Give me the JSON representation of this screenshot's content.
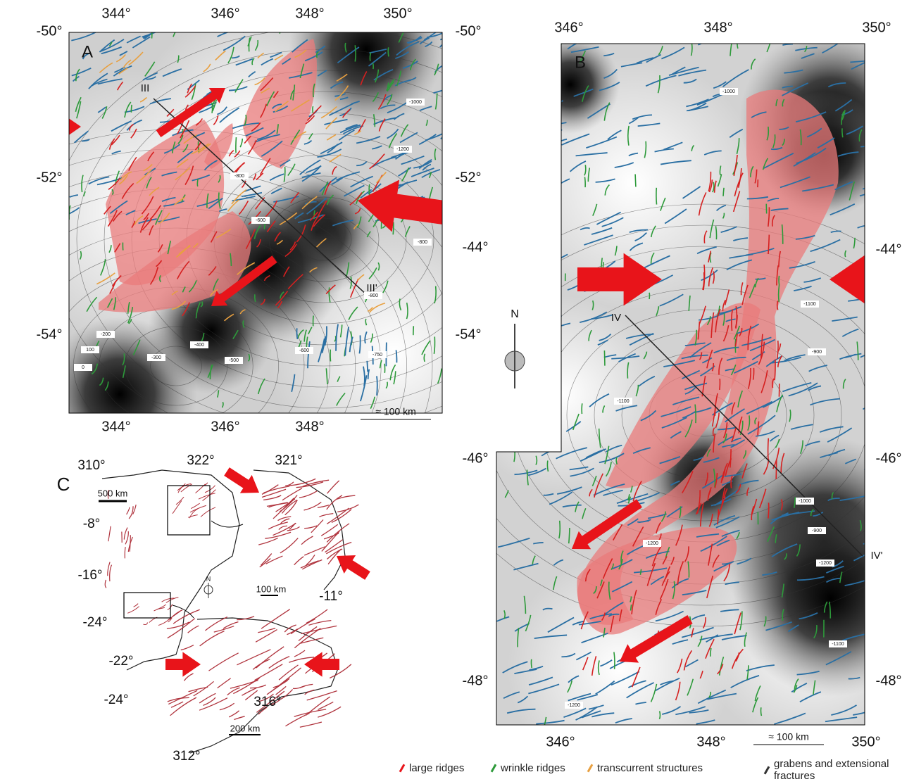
{
  "panels": [
    {
      "label": "A",
      "top_ticks": [
        "344°",
        "346°",
        "348°",
        "350°"
      ],
      "bottom_ticks": [
        "344°",
        "346°",
        "348°"
      ],
      "left_ticks": [
        "-50°",
        "-52°",
        "-54°"
      ],
      "right_ticks": [
        "-50°",
        "-52°",
        "-54°"
      ],
      "section_start": "III",
      "section_end": "III'",
      "scale_bar": "≈ 100 km",
      "contour_labels": [
        "-1200",
        "-800",
        "-600",
        "-800",
        "-800",
        "-1000",
        "-200",
        "100",
        "0",
        "-300",
        "-400",
        "-500",
        "-600",
        "-750"
      ]
    },
    {
      "label": "B",
      "top_ticks": [
        "346°",
        "348°",
        "350°"
      ],
      "bottom_ticks": [
        "346°",
        "348°",
        "350°"
      ],
      "left_ticks": [
        "-44°",
        "-46°",
        "-48°"
      ],
      "right_ticks": [
        "-44°",
        "-46°",
        "-48°"
      ],
      "section_start": "IV",
      "section_end": "IV'",
      "scale_bar": "≈ 100 km",
      "contour_labels": [
        "-1000",
        "-1100",
        "-900",
        "-1100",
        "-1200",
        "-1000",
        "-900",
        "-1200",
        "-1100",
        "-1200"
      ]
    },
    {
      "label": "C",
      "scale_bars": [
        "500 km",
        "100 km",
        "200 km"
      ],
      "coordinate_labels": [
        "310°",
        "322°",
        "321°",
        "-8°",
        "-16°",
        "-24°",
        "-11°",
        "-22°",
        "-24°",
        "316°",
        "312°"
      ],
      "north": "N"
    }
  ],
  "compass": "N",
  "legend": [
    "large ridges",
    "wrinkle ridges",
    "transcurrent structures",
    "grabens and extensional fractures"
  ]
}
